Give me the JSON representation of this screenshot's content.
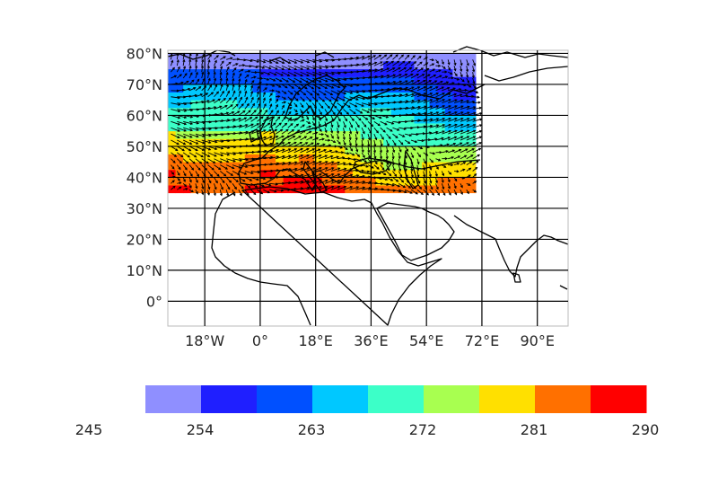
{
  "map": {
    "projection": "PlateCarree",
    "lon_range": [
      -30,
      100
    ],
    "lat_range": [
      -8,
      81
    ],
    "grid": true,
    "lat_ticks": [
      {
        "value": 80,
        "label": "80°N"
      },
      {
        "value": 70,
        "label": "70°N"
      },
      {
        "value": 60,
        "label": "60°N"
      },
      {
        "value": 50,
        "label": "50°N"
      },
      {
        "value": 40,
        "label": "40°N"
      },
      {
        "value": 30,
        "label": "30°N"
      },
      {
        "value": 20,
        "label": "20°N"
      },
      {
        "value": 10,
        "label": "10°N"
      },
      {
        "value": 0,
        "label": "0°"
      }
    ],
    "lon_ticks": [
      {
        "value": -18,
        "label": "18°W"
      },
      {
        "value": 0,
        "label": "0°"
      },
      {
        "value": 18,
        "label": "18°E"
      },
      {
        "value": 36,
        "label": "36°E"
      },
      {
        "value": 54,
        "label": "54°E"
      },
      {
        "value": 72,
        "label": "72°E"
      },
      {
        "value": 90,
        "label": "90°E"
      }
    ],
    "data_region": {
      "lon": [
        -30,
        70
      ],
      "lat": [
        35,
        80
      ]
    },
    "field": "filled contour with wind vectors",
    "coastline_color": "#000000"
  },
  "colorbar": {
    "orientation": "horizontal",
    "levels": [
      245,
      254,
      263,
      272,
      281,
      290
    ],
    "level_labels": [
      "245",
      "254",
      "263",
      "272",
      "281",
      "290"
    ],
    "colors": [
      "#8f8fff",
      "#1f1fff",
      "#0050ff",
      "#00c8ff",
      "#3cffc8",
      "#a8ff50",
      "#ffe000",
      "#ff7000",
      "#ff0000"
    ]
  }
}
